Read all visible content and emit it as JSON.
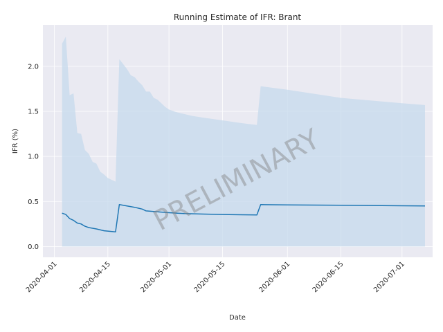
{
  "chart_data": {
    "type": "line",
    "title": "Running Estimate of IFR: Brant",
    "xlabel": "Date",
    "ylabel": "IFR (%)",
    "watermark": "PRELIMINARY",
    "x_range": [
      "2020-03-29",
      "2020-07-09"
    ],
    "ylim": [
      -0.12,
      2.46
    ],
    "x_ticks": [
      "2020-04-01",
      "2020-04-15",
      "2020-05-01",
      "2020-05-15",
      "2020-06-01",
      "2020-06-15",
      "2020-07-01"
    ],
    "y_ticks": [
      0.0,
      0.5,
      1.0,
      1.5,
      2.0
    ],
    "grid": true,
    "colors": {
      "line": "#1f77b4",
      "band": "#c6d9ec",
      "plot_bg": "#eaeaf2",
      "grid": "#ffffff"
    },
    "series": [
      {
        "kind": "line",
        "points": [
          [
            "2020-04-03",
            0.37
          ],
          [
            "2020-04-04",
            0.355
          ],
          [
            "2020-04-05",
            0.31
          ],
          [
            "2020-04-06",
            0.29
          ],
          [
            "2020-04-07",
            0.26
          ],
          [
            "2020-04-08",
            0.25
          ],
          [
            "2020-04-09",
            0.225
          ],
          [
            "2020-04-10",
            0.21
          ],
          [
            "2020-04-12",
            0.195
          ],
          [
            "2020-04-14",
            0.175
          ],
          [
            "2020-04-17",
            0.162
          ],
          [
            "2020-04-18",
            0.465
          ],
          [
            "2020-04-20",
            0.45
          ],
          [
            "2020-04-22",
            0.435
          ],
          [
            "2020-04-23",
            0.425
          ],
          [
            "2020-04-24",
            0.415
          ],
          [
            "2020-04-25",
            0.395
          ],
          [
            "2020-04-28",
            0.385
          ],
          [
            "2020-05-01",
            0.375
          ],
          [
            "2020-05-05",
            0.365
          ],
          [
            "2020-05-10",
            0.36
          ],
          [
            "2020-05-15",
            0.355
          ],
          [
            "2020-05-20",
            0.352
          ],
          [
            "2020-05-24",
            0.35
          ],
          [
            "2020-05-25",
            0.465
          ],
          [
            "2020-06-01",
            0.462
          ],
          [
            "2020-06-15",
            0.458
          ],
          [
            "2020-07-01",
            0.452
          ],
          [
            "2020-07-07",
            0.45
          ]
        ]
      },
      {
        "kind": "band",
        "lower": 0.0,
        "upper": [
          [
            "2020-04-03",
            2.25
          ],
          [
            "2020-04-04",
            2.33
          ],
          [
            "2020-04-05",
            1.68
          ],
          [
            "2020-04-06",
            1.7
          ],
          [
            "2020-04-07",
            1.26
          ],
          [
            "2020-04-08",
            1.25
          ],
          [
            "2020-04-09",
            1.07
          ],
          [
            "2020-04-10",
            1.03
          ],
          [
            "2020-04-11",
            0.94
          ],
          [
            "2020-04-12",
            0.92
          ],
          [
            "2020-04-13",
            0.83
          ],
          [
            "2020-04-14",
            0.8
          ],
          [
            "2020-04-15",
            0.76
          ],
          [
            "2020-04-17",
            0.72
          ],
          [
            "2020-04-18",
            2.08
          ],
          [
            "2020-04-20",
            1.97
          ],
          [
            "2020-04-21",
            1.9
          ],
          [
            "2020-04-22",
            1.88
          ],
          [
            "2020-04-23",
            1.83
          ],
          [
            "2020-04-24",
            1.79
          ],
          [
            "2020-04-25",
            1.72
          ],
          [
            "2020-04-26",
            1.72
          ],
          [
            "2020-04-27",
            1.65
          ],
          [
            "2020-04-28",
            1.63
          ],
          [
            "2020-04-29",
            1.59
          ],
          [
            "2020-04-30",
            1.55
          ],
          [
            "2020-05-01",
            1.52
          ],
          [
            "2020-05-03",
            1.49
          ],
          [
            "2020-05-05",
            1.47
          ],
          [
            "2020-05-07",
            1.45
          ],
          [
            "2020-05-10",
            1.43
          ],
          [
            "2020-05-15",
            1.4
          ],
          [
            "2020-05-20",
            1.37
          ],
          [
            "2020-05-24",
            1.35
          ],
          [
            "2020-05-25",
            1.78
          ],
          [
            "2020-06-01",
            1.74
          ],
          [
            "2020-06-15",
            1.65
          ],
          [
            "2020-07-01",
            1.59
          ],
          [
            "2020-07-07",
            1.57
          ]
        ]
      }
    ]
  }
}
